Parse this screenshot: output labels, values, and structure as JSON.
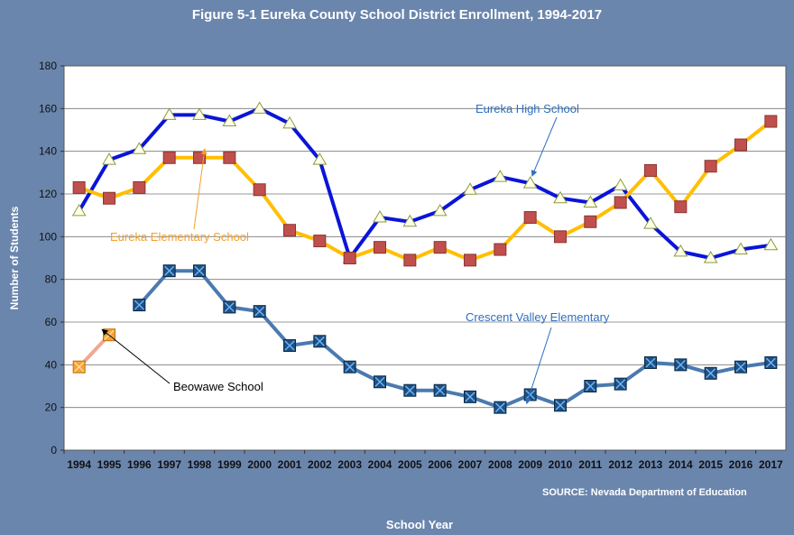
{
  "chart_data": {
    "type": "line",
    "title": "Figure 5-1 Eureka County School District Enrollment, 1994-2017",
    "xlabel": "School Year",
    "ylabel": "Number of Students",
    "source": "SOURCE: Nevada Department of Education",
    "x": [
      1994,
      1995,
      1996,
      1997,
      1998,
      1999,
      2000,
      2001,
      2002,
      2003,
      2004,
      2005,
      2006,
      2007,
      2008,
      2009,
      2010,
      2011,
      2012,
      2013,
      2014,
      2015,
      2016,
      2017
    ],
    "ylim": [
      0,
      180
    ],
    "yticks": [
      0,
      20,
      40,
      60,
      80,
      100,
      120,
      140,
      160,
      180
    ],
    "grid": true,
    "background": "#6b86ad",
    "plot_background": "#ffffff",
    "series": [
      {
        "name": "Eureka High School",
        "color": "#0a14d8",
        "marker": "triangle",
        "label_color": "#2e6fc0",
        "values": [
          112,
          136,
          141,
          157,
          157,
          154,
          160,
          153,
          136,
          90,
          109,
          107,
          112,
          122,
          128,
          125,
          118,
          116,
          124,
          106,
          93,
          90,
          94,
          96
        ]
      },
      {
        "name": "Eureka Elementary School",
        "color": "#ffbf00",
        "marker": "square",
        "label_color": "#f0a030",
        "values": [
          123,
          118,
          123,
          137,
          137,
          137,
          122,
          103,
          98,
          90,
          95,
          89,
          95,
          89,
          94,
          109,
          100,
          107,
          116,
          131,
          114,
          133,
          143,
          154
        ]
      },
      {
        "name": "Crescent Valley Elementary",
        "color": "#4a7ab0",
        "marker": "x-square",
        "label_color": "#2e6fc0",
        "values": [
          null,
          null,
          68,
          84,
          84,
          67,
          65,
          49,
          51,
          39,
          32,
          28,
          28,
          25,
          20,
          26,
          21,
          30,
          31,
          41,
          40,
          36,
          39,
          41
        ]
      },
      {
        "name": "Beowawe School",
        "color": "#f0a890",
        "marker": "x-square-orange",
        "label_color": "#000000",
        "values": [
          39,
          54,
          null,
          null,
          null,
          null,
          null,
          null,
          null,
          null,
          null,
          null,
          null,
          null,
          null,
          null,
          null,
          null,
          null,
          null,
          null,
          null,
          null,
          null
        ]
      }
    ],
    "annotations": [
      {
        "text": "Eureka High School",
        "series": 0,
        "at_x": 2009
      },
      {
        "text": "Eureka Elementary School",
        "series": 1,
        "at_x": 1998
      },
      {
        "text": "Crescent Valley Elementary",
        "series": 2,
        "at_x": 2009
      },
      {
        "text": "Beowawe School",
        "series": 3,
        "at_x": 1995
      }
    ]
  }
}
